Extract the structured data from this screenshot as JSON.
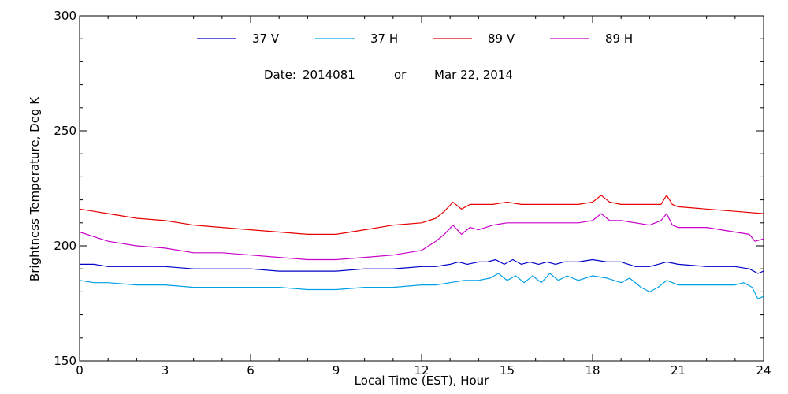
{
  "chart_data": {
    "type": "line",
    "title": "",
    "xlabel": "Local Time (EST), Hour",
    "ylabel": "Brightness Temperature, Deg K",
    "xlim": [
      0,
      24
    ],
    "ylim": [
      150,
      300
    ],
    "xticks": [
      "0",
      "3",
      "6",
      "9",
      "12",
      "15",
      "18",
      "21",
      "24"
    ],
    "yticks": [
      "150",
      "200",
      "250",
      "300"
    ],
    "grid": false,
    "legend_position": "top-center",
    "date_annotation": {
      "label": "Date:",
      "code": "2014081",
      "connector": "or",
      "date": "Mar 22, 2014"
    },
    "series": [
      {
        "name": "37 V",
        "color": "#0000c8",
        "x": [
          0,
          0.5,
          1,
          2,
          3,
          4,
          5,
          6,
          7,
          8,
          9,
          10,
          11,
          12,
          12.5,
          13,
          13.3,
          13.6,
          14,
          14.3,
          14.6,
          14.9,
          15.2,
          15.5,
          15.8,
          16.1,
          16.4,
          16.7,
          17,
          17.5,
          18,
          18.5,
          19,
          19.5,
          20,
          20.3,
          20.6,
          21,
          22,
          23,
          23.5,
          23.8,
          24
        ],
        "values": [
          192,
          192,
          191,
          191,
          191,
          190,
          190,
          190,
          189,
          189,
          189,
          190,
          190,
          191,
          191,
          192,
          193,
          192,
          193,
          193,
          194,
          192,
          194,
          192,
          193,
          192,
          193,
          192,
          193,
          193,
          194,
          193,
          193,
          191,
          191,
          192,
          193,
          192,
          191,
          191,
          190,
          188,
          189
        ]
      },
      {
        "name": "37 H",
        "color": "#00a0e6",
        "x": [
          0,
          0.5,
          1,
          2,
          3,
          4,
          5,
          6,
          7,
          8,
          9,
          10,
          11,
          12,
          12.5,
          13,
          13.5,
          14,
          14.4,
          14.7,
          15,
          15.3,
          15.6,
          15.9,
          16.2,
          16.5,
          16.8,
          17.1,
          17.5,
          18,
          18.5,
          19,
          19.3,
          19.7,
          20,
          20.3,
          20.6,
          21,
          22,
          23,
          23.3,
          23.6,
          23.8,
          24
        ],
        "values": [
          185,
          184,
          184,
          183,
          183,
          182,
          182,
          182,
          182,
          181,
          181,
          182,
          182,
          183,
          183,
          184,
          185,
          185,
          186,
          188,
          185,
          187,
          184,
          187,
          184,
          188,
          185,
          187,
          185,
          187,
          186,
          184,
          186,
          182,
          180,
          182,
          185,
          183,
          183,
          183,
          184,
          182,
          177,
          178
        ]
      },
      {
        "name": "89 V",
        "color": "#e60000",
        "x": [
          0,
          0.5,
          1,
          2,
          3,
          4,
          5,
          6,
          7,
          8,
          9,
          10,
          11,
          12,
          12.5,
          12.8,
          13.1,
          13.4,
          13.7,
          14,
          14.5,
          15,
          15.5,
          16,
          17,
          17.5,
          18,
          18.3,
          18.6,
          19,
          20,
          20.4,
          20.6,
          20.8,
          21,
          22,
          23,
          24
        ],
        "values": [
          216,
          215,
          214,
          212,
          211,
          209,
          208,
          207,
          206,
          205,
          205,
          207,
          209,
          210,
          212,
          215,
          219,
          216,
          218,
          218,
          218,
          219,
          218,
          218,
          218,
          218,
          219,
          222,
          219,
          218,
          218,
          218,
          222,
          218,
          217,
          216,
          215,
          214
        ]
      },
      {
        "name": "89 H",
        "color": "#c800c8",
        "x": [
          0,
          0.5,
          1,
          2,
          3,
          4,
          5,
          6,
          7,
          8,
          9,
          10,
          11,
          12,
          12.5,
          12.8,
          13.1,
          13.4,
          13.7,
          14,
          14.5,
          15,
          16,
          17,
          17.5,
          18,
          18.3,
          18.6,
          19,
          20,
          20.4,
          20.6,
          20.8,
          21,
          22,
          23,
          23.5,
          23.7,
          24
        ],
        "values": [
          206,
          204,
          202,
          200,
          199,
          197,
          197,
          196,
          195,
          194,
          194,
          195,
          196,
          198,
          202,
          205,
          209,
          205,
          208,
          207,
          209,
          210,
          210,
          210,
          210,
          211,
          214,
          211,
          211,
          209,
          211,
          214,
          209,
          208,
          208,
          206,
          205,
          202,
          203
        ]
      }
    ]
  }
}
